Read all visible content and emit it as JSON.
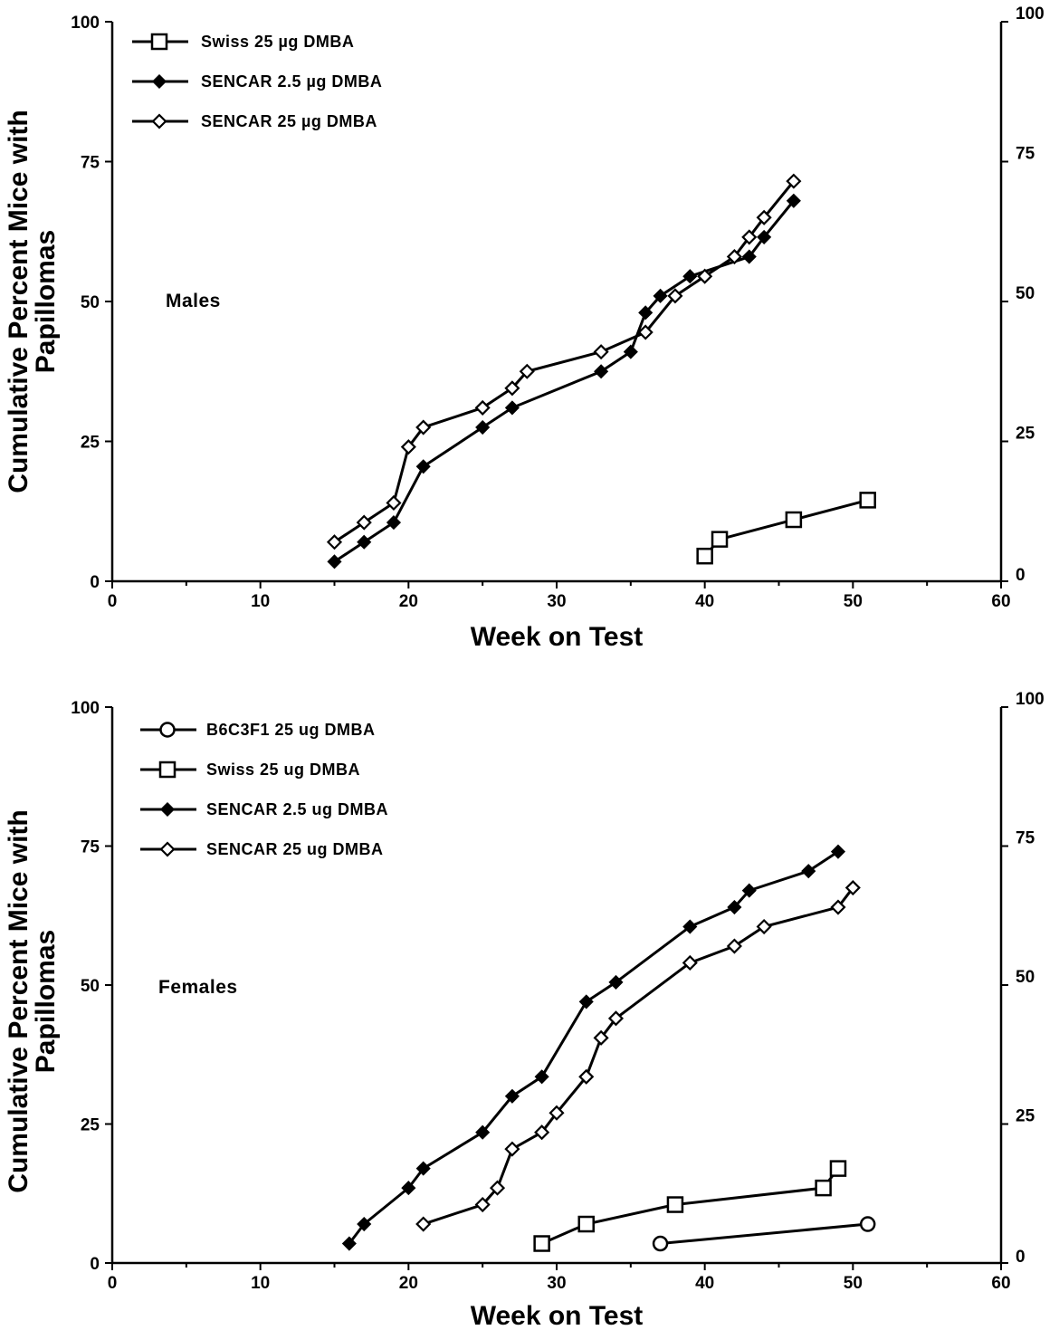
{
  "chart_data": [
    {
      "type": "line",
      "panel_label": "Males",
      "xlabel": "Week on Test",
      "ylabel_line1": "Cumulative Percent Mice with",
      "ylabel_line2": "Papillomas",
      "xlim": [
        0,
        60
      ],
      "ylim": [
        0,
        100
      ],
      "x_ticks": [
        "0",
        "10",
        "20",
        "30",
        "40",
        "50",
        "60"
      ],
      "y_ticks_left": [
        "0",
        "25",
        "50",
        "75",
        "100"
      ],
      "y_ticks_right": [
        "0",
        "25",
        "50",
        "75",
        "100"
      ],
      "grid": false,
      "legend_position": "top-left",
      "series": [
        {
          "name": "Swiss 25 µg DMBA",
          "marker": "open-square",
          "x": [
            40,
            41,
            46,
            51
          ],
          "y": [
            4.5,
            7.5,
            11,
            14.5
          ]
        },
        {
          "name": "SENCAR 2.5 µg DMBA",
          "marker": "filled-diamond",
          "x": [
            15,
            17,
            19,
            21,
            25,
            27,
            33,
            35,
            36,
            37,
            39,
            43,
            44,
            46
          ],
          "y": [
            3.5,
            7,
            10.5,
            20.5,
            27.5,
            31,
            37.5,
            41,
            48,
            51,
            54.5,
            58,
            61.5,
            68
          ]
        },
        {
          "name": "SENCAR 25 µg DMBA",
          "marker": "open-diamond",
          "x": [
            15,
            17,
            19,
            20,
            21,
            25,
            27,
            28,
            33,
            36,
            38,
            40,
            42,
            43,
            44,
            46
          ],
          "y": [
            7,
            10.5,
            14,
            24,
            27.5,
            31,
            34.5,
            37.5,
            41,
            44.5,
            51,
            54.5,
            58,
            61.5,
            65,
            71.5
          ]
        }
      ]
    },
    {
      "type": "line",
      "panel_label": "Females",
      "xlabel": "Week on Test",
      "ylabel_line1": "Cumulative Percent Mice with",
      "ylabel_line2": "Papillomas",
      "xlim": [
        0,
        60
      ],
      "ylim": [
        0,
        100
      ],
      "x_ticks": [
        "0",
        "10",
        "20",
        "30",
        "40",
        "50",
        "60"
      ],
      "y_ticks_left": [
        "0",
        "25",
        "50",
        "75",
        "100"
      ],
      "y_ticks_right": [
        "0",
        "25",
        "50",
        "75",
        "100"
      ],
      "grid": false,
      "legend_position": "top-left",
      "series": [
        {
          "name": "B6C3F1 25 ug DMBA",
          "marker": "open-circle",
          "x": [
            37,
            51
          ],
          "y": [
            3.5,
            7
          ]
        },
        {
          "name": "Swiss 25 ug DMBA",
          "marker": "open-square",
          "x": [
            29,
            32,
            38,
            48,
            49
          ],
          "y": [
            3.5,
            7,
            10.5,
            13.5,
            17
          ]
        },
        {
          "name": "SENCAR 2.5 ug DMBA",
          "marker": "filled-diamond",
          "x": [
            16,
            17,
            20,
            21,
            25,
            27,
            29,
            32,
            34,
            39,
            42,
            43,
            47,
            49
          ],
          "y": [
            3.5,
            7,
            13.5,
            17,
            23.5,
            30,
            33.5,
            47,
            50.5,
            60.5,
            64,
            67,
            70.5,
            74
          ]
        },
        {
          "name": "SENCAR 25 ug DMBA",
          "marker": "open-diamond",
          "x": [
            21,
            25,
            26,
            27,
            29,
            30,
            32,
            33,
            34,
            39,
            42,
            44,
            49,
            50
          ],
          "y": [
            7,
            10.5,
            13.5,
            20.5,
            23.5,
            27,
            33.5,
            40.5,
            44,
            54,
            57,
            60.5,
            64,
            67.5
          ]
        }
      ]
    }
  ]
}
